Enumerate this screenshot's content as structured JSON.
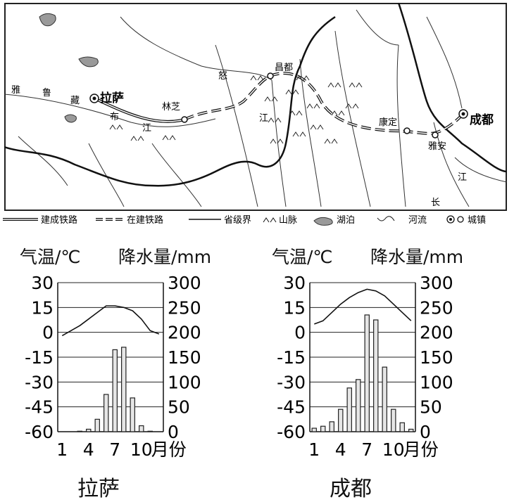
{
  "map": {
    "places": {
      "lhasa": "拉萨",
      "chengdu": "成都",
      "nyingchi": "林芝",
      "qamdo": "昌都",
      "kangding": "康定",
      "yaan": "雅安"
    },
    "river_chars": {
      "yarlung": [
        "雅",
        "鲁",
        "藏",
        "布",
        "江"
      ],
      "nu": "怒",
      "lancang": "江",
      "changjiang": [
        "长",
        "江"
      ]
    }
  },
  "legend": {
    "built_railway": "建成铁路",
    "railway_under_construction": "在建铁路",
    "provincial_boundary": "省级界",
    "mountains": "山脉",
    "lake": "湖泊",
    "river": "河流",
    "town": "城镇"
  },
  "chart_data": [
    {
      "type": "bar",
      "city": "拉萨",
      "title_left": "气温/℃",
      "title_right": "降水量/mm",
      "xlabel": "月份",
      "x_tick_labels": [
        "1",
        "4",
        "7",
        "10"
      ],
      "categories": [
        1,
        2,
        3,
        4,
        5,
        6,
        7,
        8,
        9,
        10,
        11,
        12
      ],
      "left_axis": {
        "label": "气温/℃",
        "ylim": [
          -60,
          30
        ],
        "ticks": [
          "30",
          "15",
          "0",
          "-15",
          "-30",
          "-45",
          "-60"
        ]
      },
      "right_axis": {
        "label": "降水量/mm",
        "ylim": [
          0,
          300
        ],
        "ticks": [
          "300",
          "250",
          "200",
          "150",
          "100",
          "50",
          "0"
        ]
      },
      "temperature": [
        -2,
        1,
        4,
        8,
        12,
        16,
        16,
        15,
        13,
        8,
        1,
        -1
      ],
      "precipitation": [
        0,
        0,
        1,
        5,
        25,
        75,
        165,
        170,
        68,
        12,
        1,
        0
      ]
    },
    {
      "type": "bar",
      "city": "成都",
      "title_left": "气温/℃",
      "title_right": "降水量/mm",
      "xlabel": "月份",
      "x_tick_labels": [
        "1",
        "4",
        "7",
        "10"
      ],
      "categories": [
        1,
        2,
        3,
        4,
        5,
        6,
        7,
        8,
        9,
        10,
        11,
        12
      ],
      "left_axis": {
        "label": "气温/℃",
        "ylim": [
          -60,
          30
        ],
        "ticks": [
          "30",
          "15",
          "0",
          "-15",
          "-30",
          "-45",
          "-60"
        ]
      },
      "right_axis": {
        "label": "降水量/mm",
        "ylim": [
          0,
          300
        ],
        "ticks": [
          "300",
          "250",
          "200",
          "150",
          "100",
          "50",
          "0"
        ]
      },
      "temperature": [
        5,
        7,
        12,
        17,
        21,
        24,
        26,
        25,
        22,
        17,
        12,
        7
      ],
      "precipitation": [
        7,
        11,
        20,
        45,
        88,
        105,
        235,
        225,
        130,
        45,
        18,
        5
      ]
    }
  ]
}
